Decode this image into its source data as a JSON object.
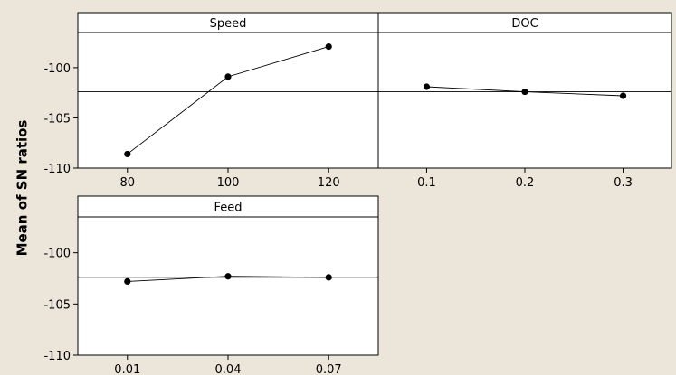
{
  "ylabel": "Mean of SN ratios",
  "chart_data": [
    {
      "type": "line",
      "title": "Speed",
      "categories": [
        "80",
        "100",
        "120"
      ],
      "values": [
        -108.6,
        -100.9,
        -97.9
      ],
      "ylim": [
        -110,
        -96.5
      ],
      "yticks": [
        -100,
        -105,
        -110
      ],
      "reference_line": -102.4
    },
    {
      "type": "line",
      "title": "DOC",
      "categories": [
        "0.1",
        "0.2",
        "0.3"
      ],
      "values": [
        -101.9,
        -102.4,
        -102.8
      ],
      "ylim": [
        -110,
        -96.5
      ],
      "yticks": [
        -100,
        -105,
        -110
      ],
      "reference_line": -102.4
    },
    {
      "type": "line",
      "title": "Feed",
      "categories": [
        "0.01",
        "0.04",
        "0.07"
      ],
      "values": [
        -102.8,
        -102.3,
        -102.4
      ],
      "ylim": [
        -110,
        -96.5
      ],
      "yticks": [
        -100,
        -105,
        -110
      ],
      "reference_line": -102.4
    }
  ]
}
